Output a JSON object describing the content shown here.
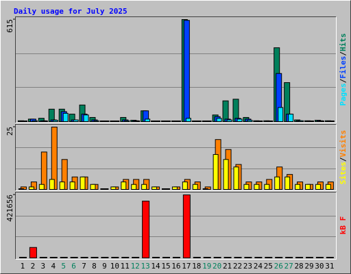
{
  "chart_data": {
    "type": "bar",
    "title": "Daily usage for July 2025",
    "categories": [
      "1",
      "2",
      "3",
      "4",
      "5",
      "6",
      "7",
      "8",
      "9",
      "10",
      "11",
      "12",
      "13",
      "14",
      "15",
      "16",
      "17",
      "18",
      "19",
      "20",
      "21",
      "22",
      "23",
      "24",
      "25",
      "26",
      "27",
      "28",
      "29",
      "30",
      "31"
    ],
    "category_colors": [
      "#000000",
      "#000000",
      "#000000",
      "#000000",
      "#00805c",
      "#00805c",
      "#000000",
      "#000000",
      "#000000",
      "#000000",
      "#000000",
      "#00805c",
      "#00805c",
      "#000000",
      "#000000",
      "#000000",
      "#000000",
      "#000000",
      "#00805c",
      "#00805c",
      "#000000",
      "#000000",
      "#000000",
      "#000000",
      "#000000",
      "#00805c",
      "#00805c",
      "#000000",
      "#000000",
      "#000000",
      "#000000"
    ],
    "legend_separator": "/",
    "panels": [
      {
        "ylim": [
          0,
          615
        ],
        "yticks": [
          615
        ],
        "series": [
          {
            "name": "Hits",
            "color": "#00805c",
            "values": [
              5,
              15,
              20,
              75,
              75,
              45,
              100,
              25,
              0,
              3,
              25,
              8,
              65,
              3,
              0,
              3,
              615,
              3,
              3,
              40,
              125,
              135,
              25,
              5,
              5,
              445,
              235,
              10,
              5,
              8,
              5
            ]
          },
          {
            "name": "Files",
            "color": "#0040ff",
            "values": [
              3,
              15,
              5,
              10,
              60,
              10,
              45,
              10,
              0,
              2,
              10,
              5,
              65,
              2,
              0,
              2,
              610,
              2,
              2,
              30,
              15,
              20,
              15,
              3,
              3,
              290,
              45,
              5,
              3,
              5,
              3
            ]
          },
          {
            "name": "Pages",
            "color": "#00e0ff",
            "values": [
              2,
              5,
              3,
              8,
              50,
              10,
              40,
              5,
              0,
              1,
              5,
              3,
              15,
              1,
              0,
              1,
              20,
              1,
              1,
              20,
              10,
              15,
              8,
              2,
              2,
              85,
              45,
              5,
              2,
              3,
              2
            ]
          }
        ]
      },
      {
        "ylim": [
          0,
          25
        ],
        "yticks": [
          25
        ],
        "series": [
          {
            "name": "Visits",
            "color": "#ff8000",
            "values": [
              1,
              3,
              15,
              25,
              12,
              5,
              5,
              2,
              0,
              1,
              4,
              4,
              4,
              1,
              0,
              1,
              4,
              3,
              1,
              20,
              16,
              10,
              3,
              3,
              4,
              9,
              6,
              3,
              2,
              3,
              3
            ]
          },
          {
            "name": "Sites",
            "color": "#ffff00",
            "values": [
              0,
              1,
              2,
              4,
              3,
              3,
              5,
              2,
              0,
              1,
              3,
              2,
              2,
              1,
              0,
              1,
              3,
              2,
              0,
              14,
              12,
              9,
              2,
              2,
              2,
              5,
              5,
              2,
              2,
              2,
              2
            ]
          }
        ]
      },
      {
        "ylim": [
          0,
          421656
        ],
        "yticks": [
          421656
        ],
        "series": [
          {
            "name": "kB F",
            "color": "#ff0000",
            "values": [
              2000,
              70000,
              2000,
              2000,
              2000,
              2000,
              2000,
              2000,
              0,
              2000,
              2000,
              2000,
              380000,
              2000,
              0,
              2000,
              421656,
              2000,
              2000,
              2000,
              2000,
              2000,
              2000,
              2000,
              2000,
              2000,
              2000,
              2000,
              2000,
              2000,
              2000
            ]
          }
        ]
      }
    ]
  }
}
